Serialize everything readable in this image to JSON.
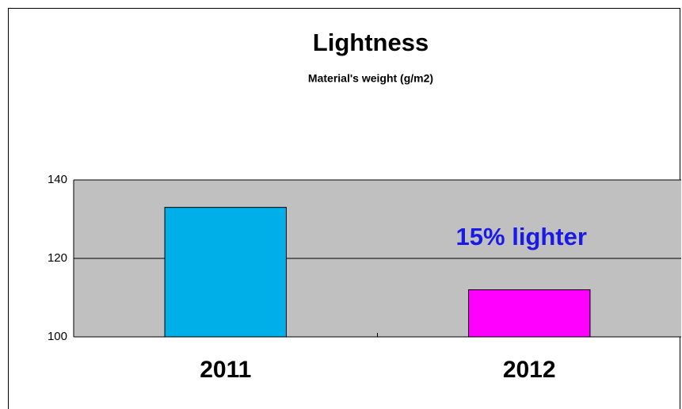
{
  "chart_data": {
    "type": "bar",
    "title": "Lightness",
    "subtitle": "Material's weight (g/m2)",
    "categories": [
      "2011",
      "2012"
    ],
    "values": [
      133,
      112
    ],
    "colors": [
      "#00aee8",
      "#ff00ff"
    ],
    "ylim": [
      100,
      140
    ],
    "yticks": [
      100,
      120,
      140
    ],
    "grid": true,
    "annotation": "15% lighter"
  }
}
